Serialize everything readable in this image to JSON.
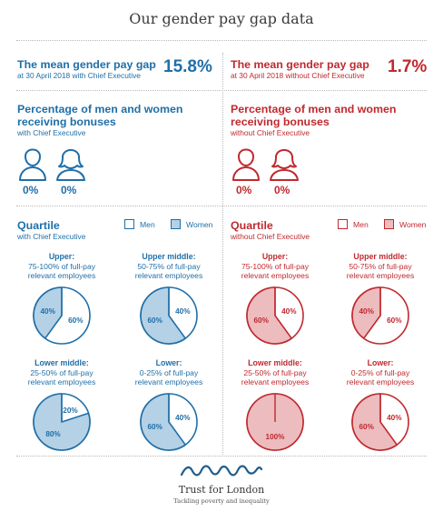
{
  "title": "Our gender pay gap data",
  "colors": {
    "blue": "#1f6fa8",
    "blue_fill": "#b4d1e6",
    "red": "#c0292f",
    "red_fill": "#ecbcbf"
  },
  "mean_gap": {
    "with_ce": {
      "heading": "The mean gender pay gap",
      "sub": "at 30 April 2018 with Chief Executive",
      "value": "15.8%"
    },
    "without_ce": {
      "heading": "The mean gender pay gap",
      "sub": "at 30 April 2018 without Chief Executive",
      "value": "1.7%"
    }
  },
  "bonus": {
    "with_ce": {
      "heading_line1": "Percentage of men and women",
      "heading_line2": "receiving bonuses",
      "sub": "with Chief Executive",
      "men": "0%",
      "women": "0%"
    },
    "without_ce": {
      "heading_line1": "Percentage of men and women",
      "heading_line2": "receiving bonuses",
      "sub": "without Chief Executive",
      "men": "0%",
      "women": "0%"
    }
  },
  "quartile": {
    "with_ce": {
      "heading": "Quartile",
      "sub": "with Chief Executive",
      "legend_men": "Men",
      "legend_women": "Women"
    },
    "without_ce": {
      "heading": "Quartile",
      "sub": "without Chief Executive",
      "legend_men": "Men",
      "legend_women": "Women"
    }
  },
  "chart_data": [
    {
      "type": "pie",
      "group": "with Chief Executive",
      "title": "Upper:",
      "subtitle_line1": "75-100% of full-pay",
      "subtitle_line2": "relevant employees",
      "slices": [
        {
          "name": "Men",
          "value": 60,
          "label": "60%"
        },
        {
          "name": "Women",
          "value": 40,
          "label": "40%"
        }
      ]
    },
    {
      "type": "pie",
      "group": "with Chief Executive",
      "title": "Upper middle:",
      "subtitle_line1": "50-75% of full-pay",
      "subtitle_line2": "relevant employees",
      "slices": [
        {
          "name": "Men",
          "value": 40,
          "label": "40%"
        },
        {
          "name": "Women",
          "value": 60,
          "label": "60%"
        }
      ]
    },
    {
      "type": "pie",
      "group": "with Chief Executive",
      "title": "Lower middle:",
      "subtitle_line1": "25-50% of full-pay",
      "subtitle_line2": "relevant employees",
      "slices": [
        {
          "name": "Men",
          "value": 20,
          "label": "20%"
        },
        {
          "name": "Women",
          "value": 80,
          "label": "80%"
        }
      ]
    },
    {
      "type": "pie",
      "group": "with Chief Executive",
      "title": "Lower:",
      "subtitle_line1": "0-25% of full-pay",
      "subtitle_line2": "relevant employees",
      "slices": [
        {
          "name": "Men",
          "value": 40,
          "label": "40%"
        },
        {
          "name": "Women",
          "value": 60,
          "label": "60%"
        }
      ]
    },
    {
      "type": "pie",
      "group": "without Chief Executive",
      "title": "Upper:",
      "subtitle_line1": "75-100% of full-pay",
      "subtitle_line2": "relevant employees",
      "slices": [
        {
          "name": "Men",
          "value": 40,
          "label": "40%"
        },
        {
          "name": "Women",
          "value": 60,
          "label": "60%"
        }
      ]
    },
    {
      "type": "pie",
      "group": "without Chief Executive",
      "title": "Upper middle:",
      "subtitle_line1": "50-75% of full-pay",
      "subtitle_line2": "relevant employees",
      "slices": [
        {
          "name": "Men",
          "value": 60,
          "label": "60%"
        },
        {
          "name": "Women",
          "value": 40,
          "label": "40%"
        }
      ]
    },
    {
      "type": "pie",
      "group": "without Chief Executive",
      "title": "Lower middle:",
      "subtitle_line1": "25-50% of full-pay",
      "subtitle_line2": "relevant employees",
      "slices": [
        {
          "name": "Men",
          "value": 0,
          "label": ""
        },
        {
          "name": "Women",
          "value": 100,
          "label": "100%"
        }
      ]
    },
    {
      "type": "pie",
      "group": "without Chief Executive",
      "title": "Lower:",
      "subtitle_line1": "0-25% of full-pay",
      "subtitle_line2": "relevant employees",
      "slices": [
        {
          "name": "Men",
          "value": 40,
          "label": "40%"
        },
        {
          "name": "Women",
          "value": 60,
          "label": "60%"
        }
      ]
    }
  ],
  "footer": {
    "logo_name": "Trust for London",
    "tagline": "Tackling poverty and inequality"
  }
}
